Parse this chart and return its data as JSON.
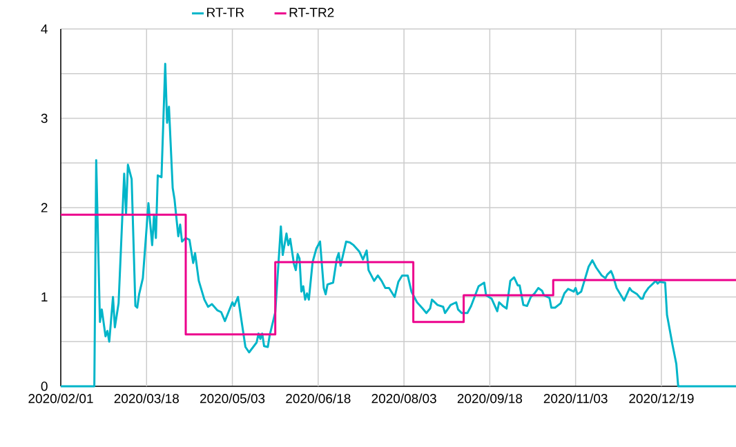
{
  "chart_data": {
    "type": "line",
    "xlim": [
      "2020-02-01",
      "2021-01-28"
    ],
    "ylim": [
      0,
      4
    ],
    "xticks": [
      {
        "value": "2020-02-01",
        "label": "2020/02/01"
      },
      {
        "value": "2020-03-18",
        "label": "2020/03/18"
      },
      {
        "value": "2020-05-03",
        "label": "2020/05/03"
      },
      {
        "value": "2020-06-18",
        "label": "2020/06/18"
      },
      {
        "value": "2020-08-03",
        "label": "2020/08/03"
      },
      {
        "value": "2020-09-18",
        "label": "2020/09/18"
      },
      {
        "value": "2020-11-03",
        "label": "2020/11/03"
      },
      {
        "value": "2020-12-19",
        "label": "2020/12/19"
      }
    ],
    "yticks": [
      0,
      {
        "value": 0.5,
        "label": null
      },
      1,
      {
        "value": 1.5,
        "label": null
      },
      2,
      {
        "value": 2.5,
        "label": null
      },
      3,
      {
        "value": 3.5,
        "label": null
      },
      4
    ],
    "grid": true,
    "legend": "top",
    "line_style": "solid",
    "marker": "none",
    "series": [
      {
        "name": "RT-TR",
        "type": "line",
        "color": "#00b5c9",
        "x": [
          "2020-02-01",
          "2020-02-19",
          "2020-02-20",
          "2020-02-22",
          "2020-02-23",
          "2020-02-25",
          "2020-02-26",
          "2020-02-27",
          "2020-02-29",
          "2020-03-01",
          "2020-03-03",
          "2020-03-06",
          "2020-03-07",
          "2020-03-08",
          "2020-03-10",
          "2020-03-12",
          "2020-03-13",
          "2020-03-14",
          "2020-03-16",
          "2020-03-19",
          "2020-03-21",
          "2020-03-22",
          "2020-03-23",
          "2020-03-24",
          "2020-03-26",
          "2020-03-28",
          "2020-03-29",
          "2020-03-30",
          "2020-04-01",
          "2020-04-02",
          "2020-04-04",
          "2020-04-05",
          "2020-04-06",
          "2020-04-08",
          "2020-04-10",
          "2020-04-12",
          "2020-04-13",
          "2020-04-15",
          "2020-04-18",
          "2020-04-20",
          "2020-04-22",
          "2020-04-25",
          "2020-04-27",
          "2020-04-29",
          "2020-05-03",
          "2020-05-04",
          "2020-05-06",
          "2020-05-10",
          "2020-05-12",
          "2020-05-16",
          "2020-05-17",
          "2020-05-18",
          "2020-05-19",
          "2020-05-20",
          "2020-05-22",
          "2020-05-23",
          "2020-05-26",
          "2020-05-29",
          "2020-05-30",
          "2020-06-01",
          "2020-06-02",
          "2020-06-03",
          "2020-06-05",
          "2020-06-06",
          "2020-06-07",
          "2020-06-08",
          "2020-06-09",
          "2020-06-10",
          "2020-06-11",
          "2020-06-12",
          "2020-06-13",
          "2020-06-15",
          "2020-06-17",
          "2020-06-19",
          "2020-06-21",
          "2020-06-22",
          "2020-06-23",
          "2020-06-26",
          "2020-06-28",
          "2020-06-29",
          "2020-06-30",
          "2020-07-03",
          "2020-07-05",
          "2020-07-07",
          "2020-07-10",
          "2020-07-12",
          "2020-07-14",
          "2020-07-15",
          "2020-07-18",
          "2020-07-20",
          "2020-07-22",
          "2020-07-24",
          "2020-07-26",
          "2020-07-29",
          "2020-07-31",
          "2020-08-02",
          "2020-08-05",
          "2020-08-07",
          "2020-08-10",
          "2020-08-13",
          "2020-08-15",
          "2020-08-17",
          "2020-08-18",
          "2020-08-21",
          "2020-08-24",
          "2020-08-25",
          "2020-08-28",
          "2020-08-31",
          "2020-09-01",
          "2020-09-03",
          "2020-09-06",
          "2020-09-08",
          "2020-09-12",
          "2020-09-15",
          "2020-09-16",
          "2020-09-19",
          "2020-09-22",
          "2020-09-23",
          "2020-09-25",
          "2020-09-27",
          "2020-09-29",
          "2020-10-01",
          "2020-10-03",
          "2020-10-04",
          "2020-10-06",
          "2020-10-08",
          "2020-10-10",
          "2020-10-12",
          "2020-10-14",
          "2020-10-16",
          "2020-10-17",
          "2020-10-20",
          "2020-10-21",
          "2020-10-23",
          "2020-10-26",
          "2020-10-28",
          "2020-10-30",
          "2020-11-02",
          "2020-11-03",
          "2020-11-04",
          "2020-11-06",
          "2020-11-08",
          "2020-11-10",
          "2020-11-12",
          "2020-11-14",
          "2020-11-17",
          "2020-11-19",
          "2020-11-20",
          "2020-11-22",
          "2020-11-23",
          "2020-11-25",
          "2020-11-29",
          "2020-12-02",
          "2020-12-03",
          "2020-12-06",
          "2020-12-08",
          "2020-12-09",
          "2020-12-10",
          "2020-12-12",
          "2020-12-14",
          "2020-12-16",
          "2020-12-17",
          "2020-12-18",
          "2020-12-21",
          "2020-12-22",
          "2020-12-25",
          "2020-12-27",
          "2020-12-28",
          "2021-01-28"
        ],
        "values": [
          0,
          0,
          2.53,
          0.72,
          0.86,
          0.56,
          0.62,
          0.5,
          1.0,
          0.66,
          0.93,
          2.38,
          1.93,
          2.48,
          2.32,
          0.9,
          0.88,
          1.03,
          1.21,
          2.05,
          1.58,
          1.92,
          1.66,
          2.36,
          2.34,
          3.61,
          2.95,
          3.13,
          2.22,
          2.09,
          1.68,
          1.81,
          1.62,
          1.66,
          1.64,
          1.38,
          1.49,
          1.18,
          0.97,
          0.89,
          0.92,
          0.85,
          0.83,
          0.73,
          0.94,
          0.9,
          1.0,
          0.44,
          0.38,
          0.49,
          0.59,
          0.53,
          0.59,
          0.45,
          0.44,
          0.57,
          0.83,
          1.79,
          1.47,
          1.71,
          1.58,
          1.65,
          1.37,
          1.3,
          1.48,
          1.43,
          1.06,
          1.12,
          0.97,
          1.04,
          0.97,
          1.39,
          1.54,
          1.62,
          1.1,
          1.03,
          1.14,
          1.16,
          1.43,
          1.49,
          1.35,
          1.62,
          1.61,
          1.58,
          1.51,
          1.42,
          1.52,
          1.3,
          1.18,
          1.24,
          1.18,
          1.1,
          1.1,
          1.0,
          1.17,
          1.24,
          1.24,
          1.06,
          0.94,
          0.87,
          0.82,
          0.87,
          0.97,
          0.91,
          0.89,
          0.82,
          0.91,
          0.94,
          0.86,
          0.82,
          0.82,
          0.9,
          1.12,
          1.16,
          1.02,
          0.98,
          0.84,
          0.94,
          0.9,
          0.87,
          1.18,
          1.22,
          1.13,
          1.13,
          0.91,
          0.9,
          1.0,
          1.04,
          1.1,
          1.07,
          1.02,
          0.99,
          0.88,
          0.88,
          0.93,
          1.04,
          1.09,
          1.06,
          1.1,
          1.03,
          1.06,
          1.2,
          1.34,
          1.41,
          1.33,
          1.24,
          1.21,
          1.25,
          1.29,
          1.24,
          1.1,
          0.96,
          1.1,
          1.07,
          1.03,
          0.98,
          0.98,
          1.04,
          1.1,
          1.14,
          1.18,
          1.15,
          1.17,
          1.16,
          0.8,
          0.46,
          0.25,
          0,
          0
        ]
      },
      {
        "name": "RT-TR2",
        "type": "step",
        "color": "#ec008c",
        "x": [
          "2020-02-01",
          "2020-04-08",
          "2020-05-26",
          "2020-08-08",
          "2020-09-04",
          "2020-10-22",
          "2021-01-28"
        ],
        "values": [
          1.92,
          0.58,
          1.39,
          0.72,
          1.02,
          1.19,
          1.19
        ]
      }
    ]
  }
}
